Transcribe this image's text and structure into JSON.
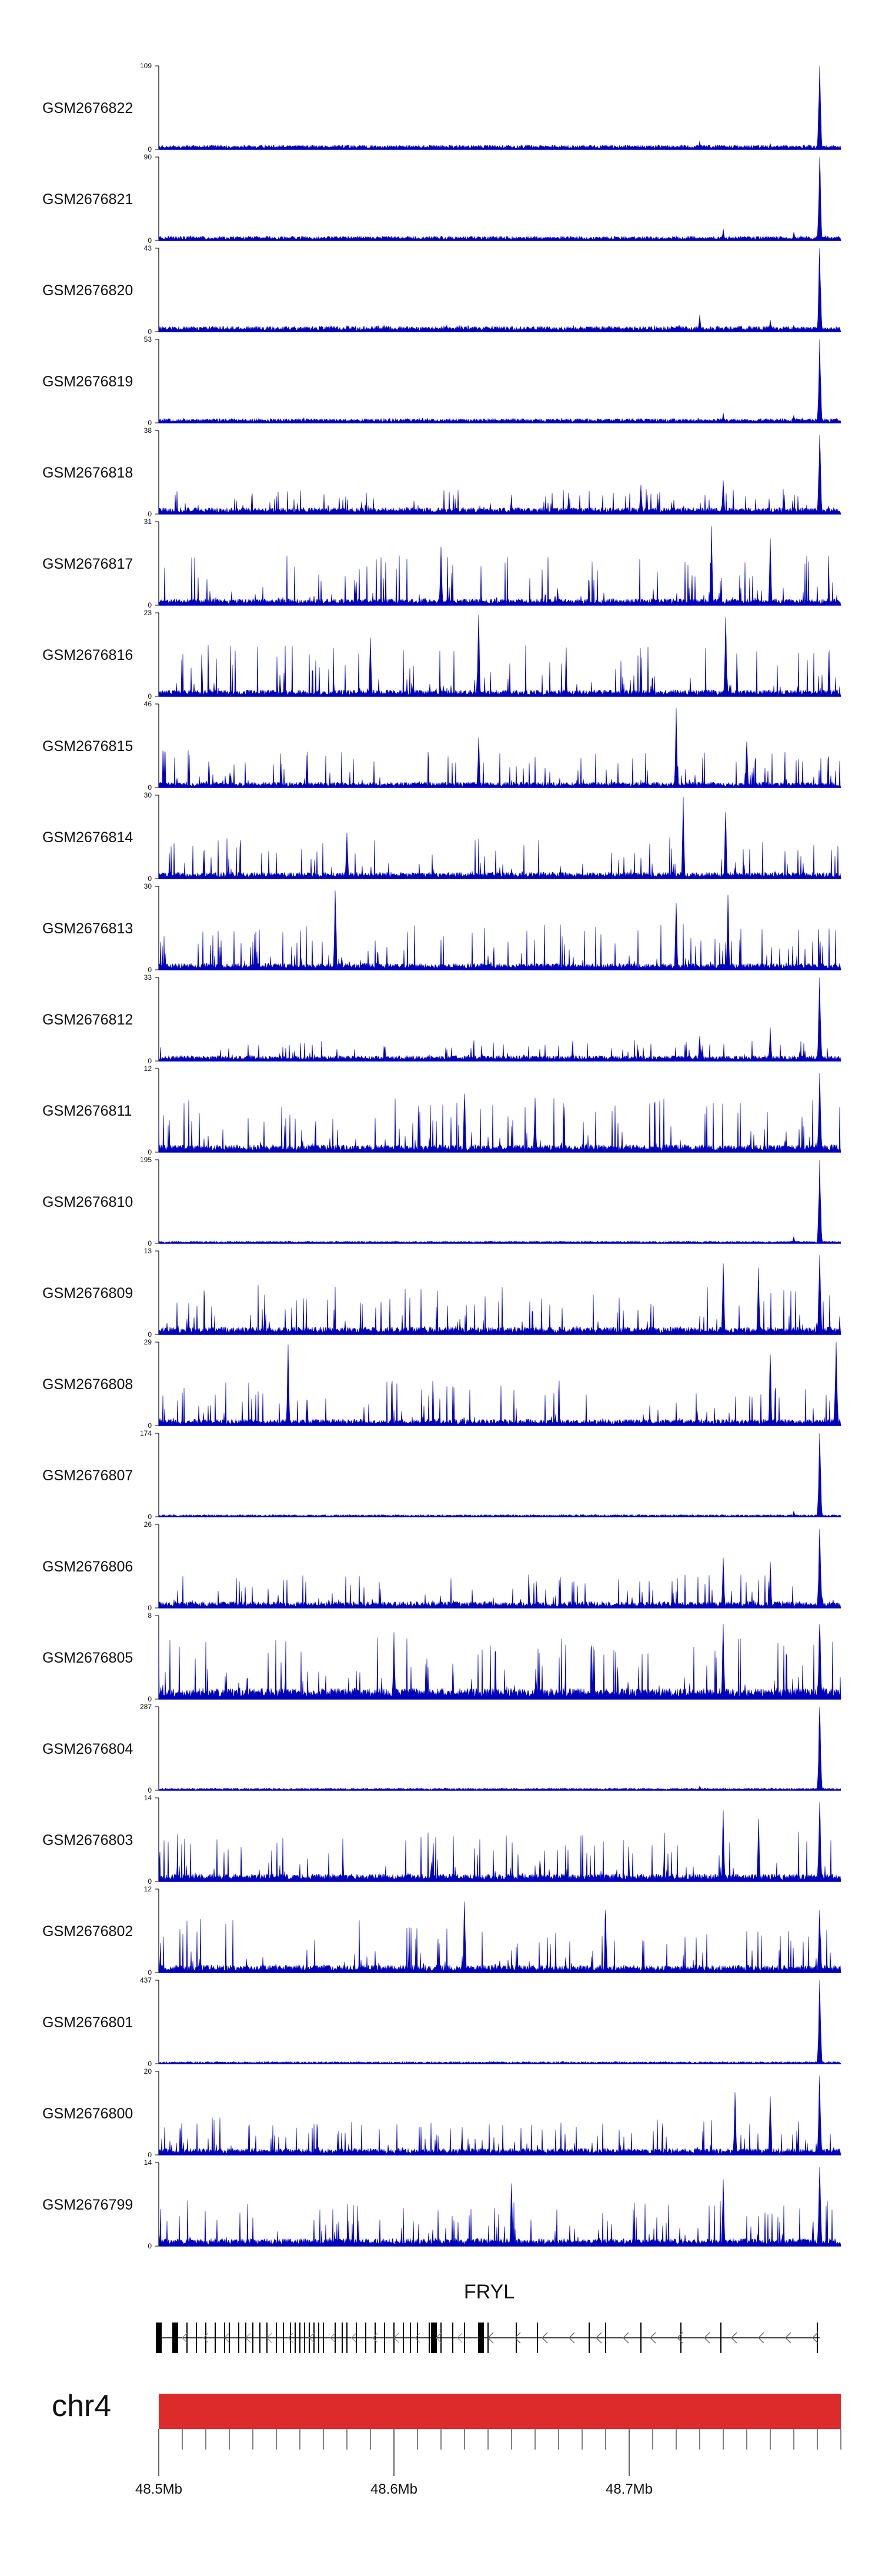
{
  "colors": {
    "signal": "#0000bb",
    "axis": "#000000",
    "chromosome_bar": "#dd2a2a",
    "gene": "#000000"
  },
  "chart_data": {
    "type": "area",
    "title": "",
    "chromosome": "chr4",
    "gene": {
      "name": "FRYL",
      "strand": "-"
    },
    "x_axis": {
      "units": "Mb",
      "range": [
        48.5,
        48.79
      ],
      "ticks": [
        {
          "value": 48.5,
          "label": "48.5Mb"
        },
        {
          "value": 48.6,
          "label": "48.6Mb"
        },
        {
          "value": 48.7,
          "label": "48.7Mb"
        }
      ]
    },
    "tracks": [
      {
        "name": "GSM2676822",
        "ymax": 109,
        "ymin_label": "0",
        "peak_pos": 48.781,
        "peak_frac": 1.0,
        "base_frac": 0.04,
        "noise": 0.05,
        "extra_peaks": [
          [
            48.73,
            0.1
          ],
          [
            48.76,
            0.07
          ]
        ]
      },
      {
        "name": "GSM2676821",
        "ymax": 90,
        "ymin_label": "0",
        "peak_pos": 48.781,
        "peak_frac": 1.0,
        "base_frac": 0.04,
        "noise": 0.06,
        "extra_peaks": [
          [
            48.74,
            0.14
          ],
          [
            48.77,
            0.1
          ]
        ]
      },
      {
        "name": "GSM2676820",
        "ymax": 43,
        "ymin_label": "0",
        "peak_pos": 48.781,
        "peak_frac": 1.0,
        "base_frac": 0.05,
        "noise": 0.08,
        "extra_peaks": [
          [
            48.73,
            0.2
          ],
          [
            48.76,
            0.14
          ]
        ]
      },
      {
        "name": "GSM2676819",
        "ymax": 53,
        "ymin_label": "0",
        "peak_pos": 48.781,
        "peak_frac": 1.0,
        "base_frac": 0.04,
        "noise": 0.06,
        "extra_peaks": [
          [
            48.74,
            0.12
          ],
          [
            48.77,
            0.09
          ]
        ]
      },
      {
        "name": "GSM2676818",
        "ymax": 38,
        "ymin_label": "0",
        "peak_pos": 48.781,
        "peak_frac": 0.95,
        "base_frac": 0.06,
        "noise": 0.3,
        "extra_peaks": [
          [
            48.705,
            0.35
          ],
          [
            48.74,
            0.4
          ]
        ]
      },
      {
        "name": "GSM2676817",
        "ymax": 31,
        "ymin_label": "0",
        "peak_pos": null,
        "peak_frac": 0,
        "base_frac": 0.06,
        "noise": 0.6,
        "extra_peaks": [
          [
            48.735,
            0.95
          ],
          [
            48.76,
            0.8
          ],
          [
            48.62,
            0.7
          ]
        ]
      },
      {
        "name": "GSM2676816",
        "ymax": 23,
        "ymin_label": "0",
        "peak_pos": null,
        "peak_frac": 0,
        "base_frac": 0.06,
        "noise": 0.62,
        "extra_peaks": [
          [
            48.636,
            0.98
          ],
          [
            48.741,
            0.95
          ],
          [
            48.59,
            0.7
          ]
        ]
      },
      {
        "name": "GSM2676815",
        "ymax": 46,
        "ymin_label": "0",
        "peak_pos": null,
        "peak_frac": 0,
        "base_frac": 0.05,
        "noise": 0.45,
        "extra_peaks": [
          [
            48.72,
            0.95
          ],
          [
            48.636,
            0.6
          ],
          [
            48.75,
            0.55
          ]
        ]
      },
      {
        "name": "GSM2676814",
        "ymax": 30,
        "ymin_label": "0",
        "peak_pos": null,
        "peak_frac": 0,
        "base_frac": 0.06,
        "noise": 0.5,
        "extra_peaks": [
          [
            48.723,
            0.98
          ],
          [
            48.741,
            0.8
          ],
          [
            48.58,
            0.55
          ]
        ]
      },
      {
        "name": "GSM2676813",
        "ymax": 30,
        "ymin_label": "0",
        "peak_pos": null,
        "peak_frac": 0,
        "base_frac": 0.06,
        "noise": 0.55,
        "extra_peaks": [
          [
            48.575,
            0.95
          ],
          [
            48.742,
            0.9
          ],
          [
            48.72,
            0.8
          ]
        ]
      },
      {
        "name": "GSM2676812",
        "ymax": 33,
        "ymin_label": "0",
        "peak_pos": 48.781,
        "peak_frac": 1.0,
        "base_frac": 0.05,
        "noise": 0.25,
        "extra_peaks": [
          [
            48.76,
            0.4
          ],
          [
            48.73,
            0.3
          ]
        ]
      },
      {
        "name": "GSM2676811",
        "ymax": 12,
        "ymin_label": "0",
        "peak_pos": 48.781,
        "peak_frac": 0.95,
        "base_frac": 0.07,
        "noise": 0.65,
        "extra_peaks": [
          [
            48.63,
            0.7
          ],
          [
            48.66,
            0.65
          ]
        ]
      },
      {
        "name": "GSM2676810",
        "ymax": 195,
        "ymin_label": "0",
        "peak_pos": 48.781,
        "peak_frac": 1.0,
        "base_frac": 0.02,
        "noise": 0.03,
        "extra_peaks": [
          [
            48.77,
            0.08
          ]
        ]
      },
      {
        "name": "GSM2676809",
        "ymax": 13,
        "ymin_label": "0",
        "peak_pos": 48.781,
        "peak_frac": 0.95,
        "base_frac": 0.07,
        "noise": 0.6,
        "extra_peaks": [
          [
            48.74,
            0.85
          ],
          [
            48.755,
            0.8
          ]
        ]
      },
      {
        "name": "GSM2676808",
        "ymax": 29,
        "ymin_label": "0",
        "peak_pos": 48.788,
        "peak_frac": 1.0,
        "base_frac": 0.06,
        "noise": 0.55,
        "extra_peaks": [
          [
            48.555,
            0.97
          ],
          [
            48.76,
            0.85
          ]
        ]
      },
      {
        "name": "GSM2676807",
        "ymax": 174,
        "ymin_label": "0",
        "peak_pos": 48.781,
        "peak_frac": 1.0,
        "base_frac": 0.02,
        "noise": 0.03,
        "extra_peaks": [
          [
            48.77,
            0.07
          ]
        ]
      },
      {
        "name": "GSM2676806",
        "ymax": 26,
        "ymin_label": "0",
        "peak_pos": 48.781,
        "peak_frac": 0.95,
        "base_frac": 0.06,
        "noise": 0.4,
        "extra_peaks": [
          [
            48.74,
            0.6
          ],
          [
            48.76,
            0.55
          ]
        ]
      },
      {
        "name": "GSM2676805",
        "ymax": 8,
        "ymin_label": "0",
        "peak_pos": 48.781,
        "peak_frac": 0.9,
        "base_frac": 0.1,
        "noise": 0.75,
        "extra_peaks": [
          [
            48.74,
            0.9
          ],
          [
            48.6,
            0.8
          ]
        ]
      },
      {
        "name": "GSM2676804",
        "ymax": 287,
        "ymin_label": "0",
        "peak_pos": 48.781,
        "peak_frac": 1.0,
        "base_frac": 0.02,
        "noise": 0.03,
        "extra_peaks": [
          [
            48.73,
            0.05
          ]
        ]
      },
      {
        "name": "GSM2676803",
        "ymax": 14,
        "ymin_label": "0",
        "peak_pos": 48.781,
        "peak_frac": 0.95,
        "base_frac": 0.07,
        "noise": 0.6,
        "extra_peaks": [
          [
            48.74,
            0.85
          ],
          [
            48.755,
            0.75
          ]
        ]
      },
      {
        "name": "GSM2676802",
        "ymax": 12,
        "ymin_label": "0",
        "peak_pos": 48.781,
        "peak_frac": 0.75,
        "base_frac": 0.07,
        "noise": 0.65,
        "extra_peaks": [
          [
            48.63,
            0.85
          ],
          [
            48.69,
            0.75
          ]
        ]
      },
      {
        "name": "GSM2676801",
        "ymax": 437,
        "ymin_label": "0",
        "peak_pos": 48.781,
        "peak_frac": 1.0,
        "base_frac": 0.02,
        "noise": 0.02,
        "extra_peaks": []
      },
      {
        "name": "GSM2676800",
        "ymax": 20,
        "ymin_label": "0",
        "peak_pos": 48.781,
        "peak_frac": 0.95,
        "base_frac": 0.06,
        "noise": 0.45,
        "extra_peaks": [
          [
            48.745,
            0.75
          ],
          [
            48.76,
            0.7
          ]
        ]
      },
      {
        "name": "GSM2676799",
        "ymax": 14,
        "ymin_label": "0",
        "peak_pos": 48.781,
        "peak_frac": 0.95,
        "base_frac": 0.07,
        "noise": 0.55,
        "extra_peaks": [
          [
            48.65,
            0.75
          ],
          [
            48.74,
            0.8
          ]
        ]
      }
    ],
    "gene_model": {
      "exons_dense": [
        48.5,
        48.506,
        48.508,
        48.512,
        48.516,
        48.52,
        48.524,
        48.528,
        48.53,
        48.534,
        48.537,
        48.54,
        48.543,
        48.546,
        48.55,
        48.553,
        48.556,
        48.558,
        48.56,
        48.562,
        48.564,
        48.566,
        48.568,
        48.57,
        48.575,
        48.578,
        48.58,
        48.584,
        48.588,
        48.592,
        48.596,
        48.6,
        48.604,
        48.607,
        48.61,
        48.615,
        48.62,
        48.625,
        48.63,
        48.64,
        48.652,
        48.661,
        48.683,
        48.69,
        48.705,
        48.722,
        48.739,
        48.78
      ],
      "exons_thick": [
        48.5,
        48.507,
        48.617,
        48.637
      ]
    }
  }
}
